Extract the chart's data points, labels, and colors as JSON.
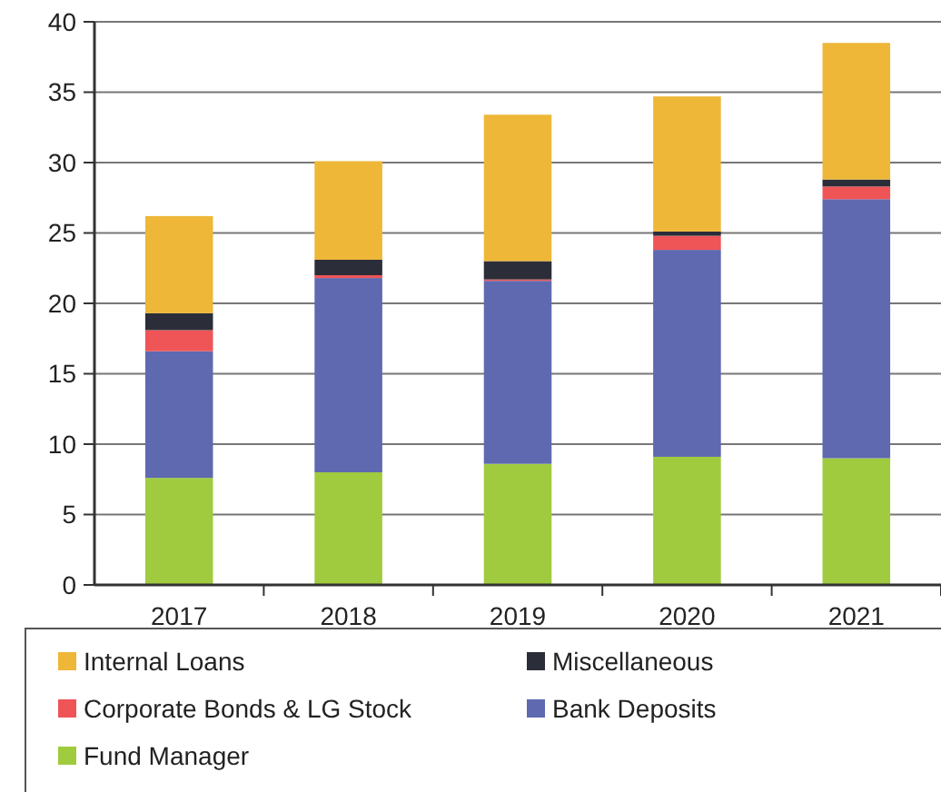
{
  "chart_data": {
    "type": "bar",
    "stacked": true,
    "categories": [
      "2017",
      "2018",
      "2019",
      "2020",
      "2021"
    ],
    "series": [
      {
        "name": "Fund Manager",
        "color": "#a0cb3f",
        "values": [
          7.6,
          8.0,
          8.6,
          9.1,
          9.0
        ]
      },
      {
        "name": "Bank Deposits",
        "color": "#5e69b0",
        "values": [
          9.0,
          13.8,
          13.0,
          14.7,
          18.4
        ]
      },
      {
        "name": "Corporate Bonds & LG Stock",
        "color": "#ef5457",
        "values": [
          1.5,
          0.2,
          0.1,
          1.0,
          0.9
        ]
      },
      {
        "name": "Miscellaneous",
        "color": "#2b2d38",
        "values": [
          1.2,
          1.1,
          1.3,
          0.3,
          0.5
        ]
      },
      {
        "name": "Internal Loans",
        "color": "#eeb737",
        "values": [
          6.9,
          7.0,
          10.4,
          9.6,
          9.7
        ]
      }
    ],
    "ylim": [
      0,
      40
    ],
    "yticks": [
      0,
      5,
      10,
      15,
      20,
      25,
      30,
      35,
      40
    ],
    "grid": "y",
    "legend": "bottom"
  }
}
